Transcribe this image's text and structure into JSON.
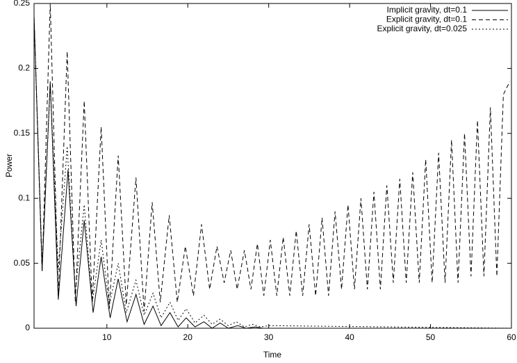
{
  "chart_data": {
    "type": "line",
    "xlabel": "Time",
    "ylabel": "Power",
    "xlim": [
      1,
      60
    ],
    "xticks": [
      10,
      20,
      30,
      40,
      50,
      60
    ],
    "ylim": [
      0,
      0.25
    ],
    "yticks": [
      0,
      0.05,
      0.1,
      0.15,
      0.2,
      0.25
    ],
    "legend": "upper right",
    "series": [
      {
        "name": "Implicit gravity, dt=0.1",
        "color": "#000000",
        "style": "solid",
        "x": [
          1,
          2,
          3,
          4,
          5.2,
          6.2,
          7.2,
          8.3,
          9.3,
          10.4,
          11.4,
          12.5,
          13.6,
          14.6,
          15.7,
          16.7,
          17.8,
          18.8,
          19.8,
          20.9,
          22,
          23,
          24,
          25,
          26.2,
          27.2,
          28.3,
          29.3,
          60
        ],
        "values": [
          0.24,
          0.045,
          0.19,
          0.022,
          0.122,
          0.017,
          0.083,
          0.012,
          0.055,
          0.008,
          0.038,
          0.005,
          0.026,
          0.003,
          0.017,
          0.002,
          0.012,
          0.001,
          0.008,
          0.001,
          0.005,
          0,
          0.004,
          0,
          0.002,
          0,
          0.001,
          0,
          0
        ]
      },
      {
        "name": "Explicit gravity, dt=0.1",
        "color": "#000000",
        "style": "dashed",
        "x": [
          1,
          2,
          3,
          4,
          5.1,
          6.1,
          7.2,
          8.2,
          9.3,
          10.3,
          11.4,
          12.4,
          13.6,
          14.6,
          15.6,
          16.6,
          17.7,
          18.7,
          19.7,
          20.7,
          21.7,
          22.7,
          23.6,
          24.5,
          25.3,
          26.1,
          27,
          27.8,
          28.6,
          29.4,
          30.2,
          31,
          31.8,
          32.6,
          33.4,
          34.2,
          35,
          35.8,
          36.6,
          37.4,
          38.2,
          39,
          39.8,
          40.6,
          41.4,
          42.2,
          43,
          43.8,
          44.6,
          45.4,
          46.2,
          47,
          47.8,
          48.6,
          49.4,
          50.2,
          51,
          51.8,
          52.6,
          53.4,
          54.2,
          55,
          55.8,
          56.6,
          57.4,
          58.2,
          59,
          59.8
        ],
        "values": [
          0.24,
          0.043,
          0.25,
          0.025,
          0.213,
          0.02,
          0.175,
          0.02,
          0.155,
          0.015,
          0.133,
          0.018,
          0.116,
          0.013,
          0.097,
          0.02,
          0.087,
          0.02,
          0.063,
          0.025,
          0.08,
          0.03,
          0.063,
          0.035,
          0.06,
          0.03,
          0.06,
          0.03,
          0.065,
          0.025,
          0.068,
          0.025,
          0.07,
          0.025,
          0.075,
          0.025,
          0.08,
          0.025,
          0.085,
          0.025,
          0.09,
          0.03,
          0.095,
          0.03,
          0.1,
          0.03,
          0.105,
          0.03,
          0.11,
          0.035,
          0.115,
          0.035,
          0.12,
          0.035,
          0.13,
          0.035,
          0.135,
          0.035,
          0.145,
          0.035,
          0.15,
          0.04,
          0.16,
          0.04,
          0.17,
          0.04,
          0.18,
          0.19
        ]
      },
      {
        "name": "Explicit gravity, dt=0.025",
        "color": "#000000",
        "style": "dotted",
        "x": [
          1,
          2,
          3,
          4,
          5.1,
          6.1,
          7.2,
          8.2,
          9.3,
          10.3,
          11.4,
          12.4,
          13.6,
          14.6,
          15.7,
          16.7,
          17.8,
          18.8,
          19.8,
          20.9,
          22,
          23,
          24,
          25,
          26,
          27,
          28,
          29,
          30,
          60
        ],
        "values": [
          0.24,
          0.05,
          0.188,
          0.045,
          0.14,
          0.028,
          0.095,
          0.02,
          0.068,
          0.018,
          0.05,
          0.012,
          0.037,
          0.01,
          0.027,
          0.008,
          0.02,
          0.006,
          0.015,
          0.004,
          0.01,
          0.003,
          0.007,
          0.002,
          0.005,
          0.001,
          0.003,
          0.001,
          0.002,
          0
        ]
      }
    ]
  }
}
